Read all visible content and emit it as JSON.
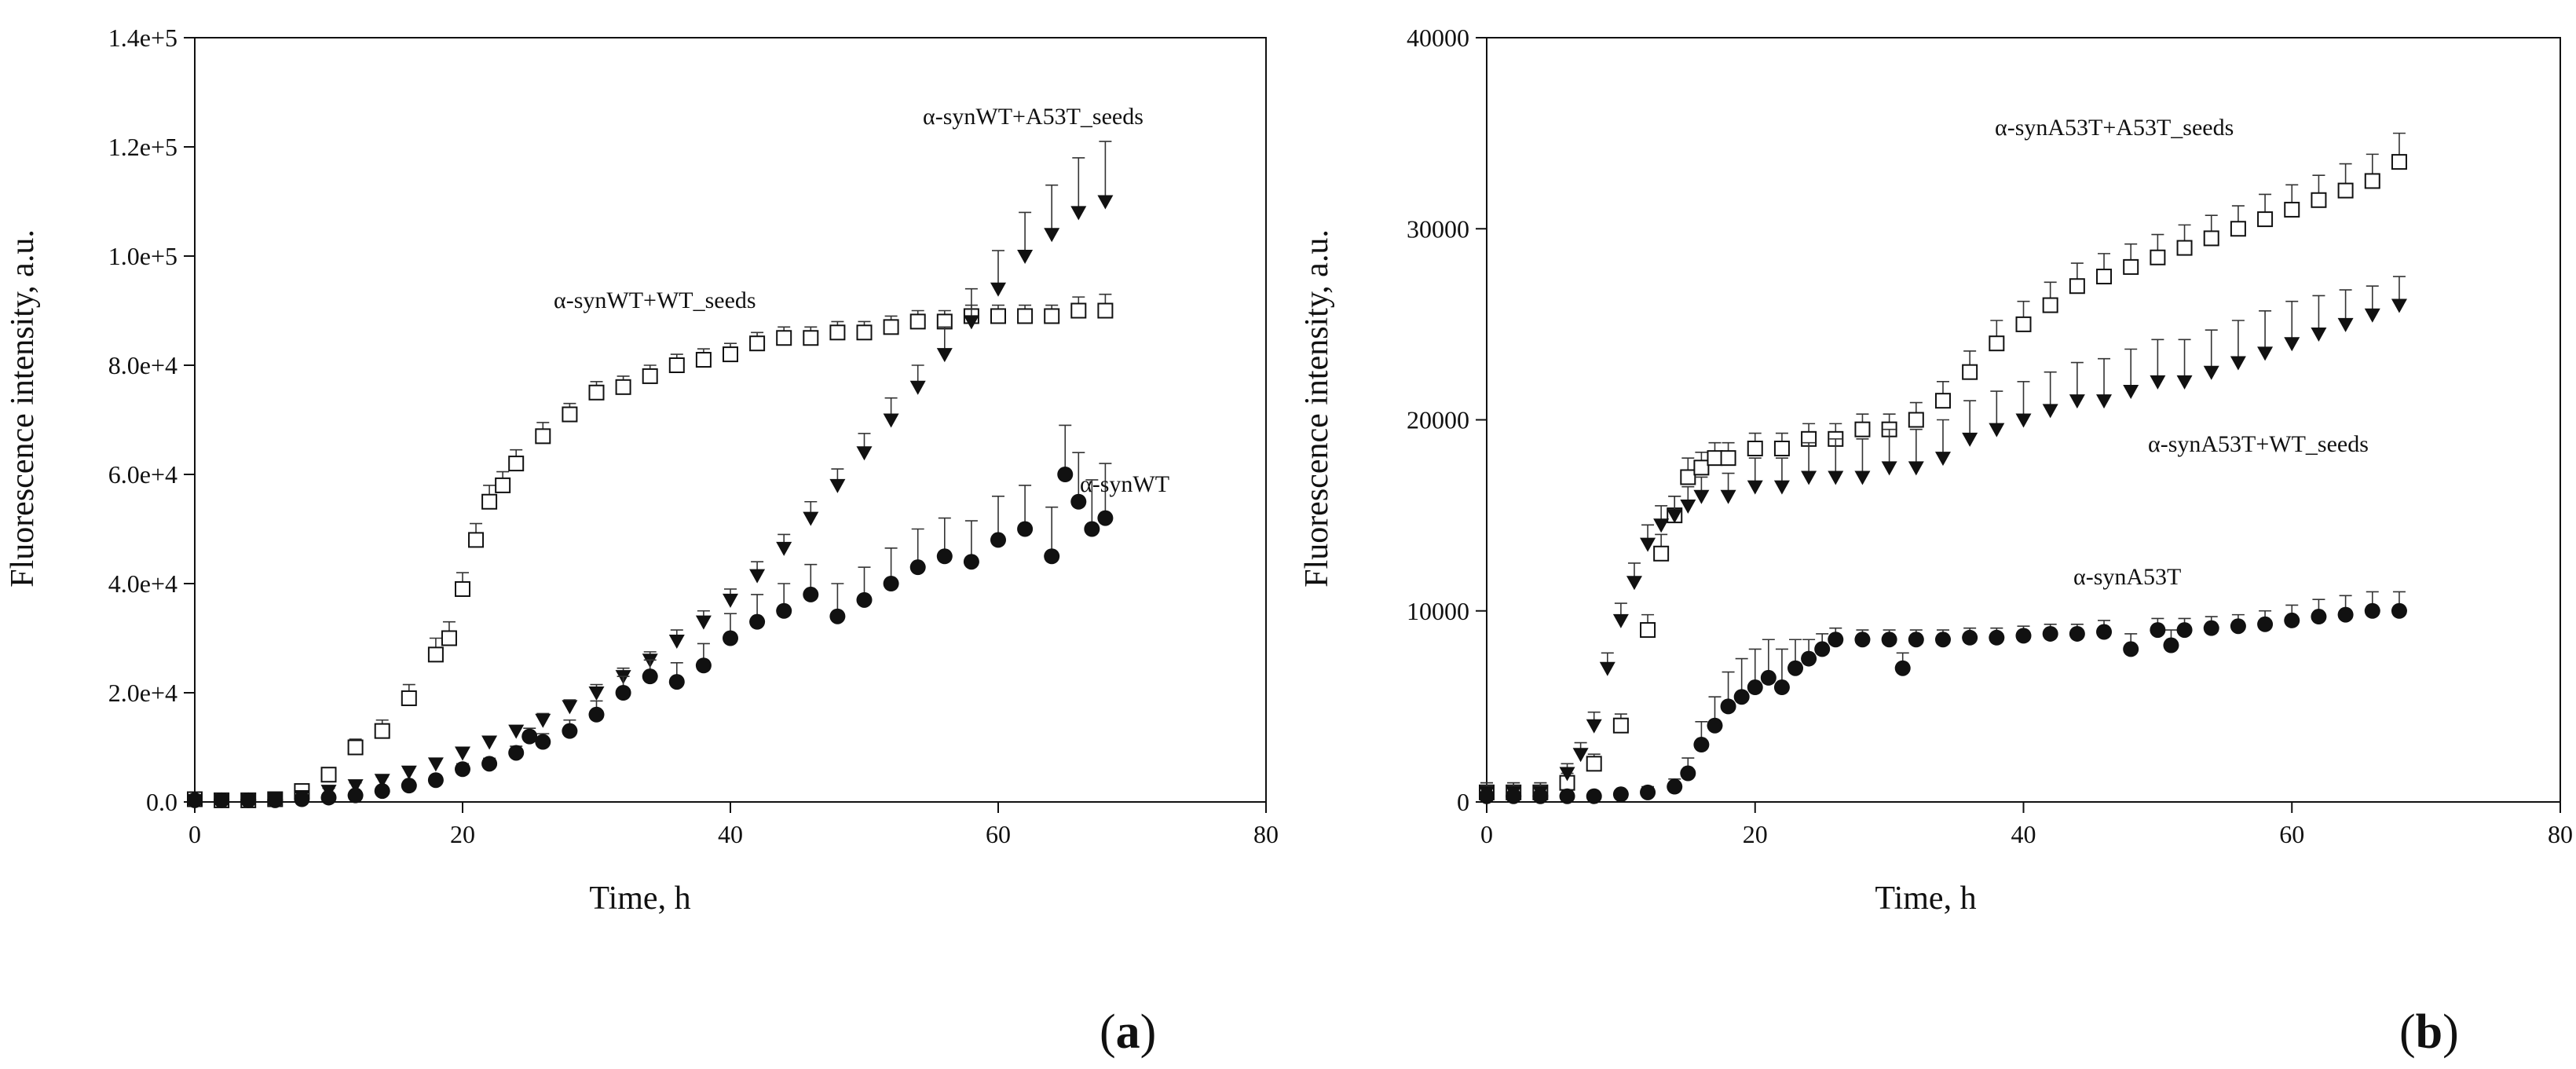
{
  "chart_data": [
    {
      "type": "scatter",
      "panel": "a",
      "xlabel": "Time, h",
      "ylabel": "Fluorescence intensity, a.u.",
      "xlim": [
        0,
        80
      ],
      "ylim": [
        0,
        140000
      ],
      "xticks": [
        "0",
        "20",
        "40",
        "60",
        "80"
      ],
      "yticks": [
        "0.0",
        "2.0e+4",
        "4.0e+4",
        "6.0e+4",
        "8.0e+4",
        "1.0e+5",
        "1.2e+5",
        "1.4e+5"
      ],
      "grid": false,
      "series": [
        {
          "name": "α-synWT+WT_seeds",
          "marker": "open-square",
          "x": [
            0,
            2,
            4,
            6,
            8,
            10,
            12,
            14,
            16,
            18,
            19,
            20,
            21,
            22,
            23,
            24,
            26,
            28,
            30,
            32,
            34,
            36,
            38,
            40,
            42,
            44,
            46,
            48,
            50,
            52,
            54,
            56,
            58,
            60,
            62,
            64,
            66,
            68
          ],
          "y": [
            500,
            300,
            300,
            500,
            2000,
            5000,
            10000,
            13000,
            19000,
            27000,
            30000,
            39000,
            48000,
            55000,
            58000,
            62000,
            67000,
            71000,
            75000,
            76000,
            78000,
            80000,
            81000,
            82000,
            84000,
            85000,
            85000,
            86000,
            86000,
            87000,
            88000,
            88000,
            89000,
            89000,
            89000,
            89000,
            90000,
            90000
          ],
          "err": [
            0,
            0,
            0,
            0,
            500,
            1000,
            1500,
            2000,
            2500,
            3000,
            3000,
            3000,
            3000,
            3000,
            2500,
            2500,
            2500,
            2000,
            2000,
            2000,
            2000,
            2000,
            2000,
            2000,
            2000,
            2000,
            2000,
            2000,
            2000,
            2000,
            2000,
            2000,
            2000,
            2000,
            2000,
            2000,
            2500,
            3000
          ]
        },
        {
          "name": "α-synWT+A53T_seeds",
          "marker": "filled-triangle-down",
          "x": [
            0,
            2,
            4,
            6,
            8,
            10,
            12,
            14,
            16,
            18,
            20,
            22,
            24,
            26,
            28,
            30,
            32,
            34,
            36,
            38,
            40,
            42,
            44,
            46,
            48,
            50,
            52,
            54,
            56,
            58,
            60,
            62,
            64,
            66,
            68
          ],
          "y": [
            300,
            300,
            300,
            500,
            1000,
            2000,
            3000,
            4000,
            5500,
            7000,
            9000,
            11000,
            13000,
            15000,
            17500,
            20000,
            23000,
            26000,
            29500,
            33000,
            37000,
            41500,
            46500,
            52000,
            58000,
            64000,
            70000,
            76000,
            82000,
            88000,
            94000,
            100000,
            104000,
            108000,
            110000
          ],
          "err": [
            0,
            0,
            0,
            0,
            300,
            500,
            500,
            600,
            700,
            800,
            1000,
            1000,
            1000,
            1200,
            1200,
            1500,
            1500,
            1500,
            2000,
            2000,
            2000,
            2500,
            2500,
            3000,
            3000,
            3500,
            4000,
            4000,
            5000,
            6000,
            7000,
            8000,
            9000,
            10000,
            11000
          ]
        },
        {
          "name": "α-synWT",
          "marker": "filled-circle",
          "x": [
            0,
            2,
            4,
            6,
            8,
            10,
            12,
            14,
            16,
            18,
            20,
            22,
            24,
            25,
            26,
            28,
            30,
            32,
            34,
            36,
            38,
            40,
            42,
            44,
            46,
            48,
            50,
            52,
            54,
            56,
            58,
            60,
            62,
            64,
            65,
            66,
            67,
            68
          ],
          "y": [
            300,
            300,
            300,
            300,
            500,
            800,
            1200,
            2000,
            3000,
            4000,
            6000,
            7000,
            9000,
            12000,
            11000,
            13000,
            16000,
            20000,
            23000,
            22000,
            25000,
            30000,
            33000,
            35000,
            38000,
            34000,
            37000,
            40000,
            43000,
            45000,
            44000,
            48000,
            50000,
            45000,
            60000,
            55000,
            50000,
            52000
          ],
          "err": [
            0,
            0,
            0,
            0,
            200,
            300,
            400,
            500,
            600,
            800,
            1000,
            1000,
            1200,
            1500,
            1500,
            2000,
            2500,
            3000,
            3000,
            3500,
            4000,
            4500,
            5000,
            5000,
            5500,
            6000,
            6000,
            6500,
            7000,
            7000,
            7500,
            8000,
            8000,
            9000,
            9000,
            9000,
            9000,
            10000
          ]
        }
      ],
      "annotations": [
        "α-synWT+A53T_seeds",
        "α-synWT+WT_seeds",
        "α-synWT"
      ],
      "caption": "(a)"
    },
    {
      "type": "scatter",
      "panel": "b",
      "xlabel": "Time, h",
      "ylabel": "Fluorescence intensity, a.u.",
      "xlim": [
        0,
        80
      ],
      "ylim": [
        0,
        40000
      ],
      "xticks": [
        "0",
        "20",
        "40",
        "60",
        "80"
      ],
      "yticks": [
        "0",
        "10000",
        "20000",
        "30000",
        "40000"
      ],
      "grid": false,
      "series": [
        {
          "name": "α-synA53T+A53T_seeds",
          "marker": "open-square",
          "x": [
            0,
            2,
            4,
            6,
            8,
            10,
            12,
            13,
            14,
            15,
            16,
            17,
            18,
            20,
            22,
            24,
            26,
            28,
            30,
            32,
            34,
            36,
            38,
            40,
            42,
            44,
            46,
            48,
            50,
            52,
            54,
            56,
            58,
            60,
            62,
            64,
            66,
            68
          ],
          "y": [
            500,
            500,
            500,
            1000,
            2000,
            4000,
            9000,
            13000,
            15000,
            17000,
            17500,
            18000,
            18000,
            18500,
            18500,
            19000,
            19000,
            19500,
            19500,
            20000,
            21000,
            22500,
            24000,
            25000,
            26000,
            27000,
            27500,
            28000,
            28500,
            29000,
            29500,
            30000,
            30500,
            31000,
            31500,
            32000,
            32500,
            33500
          ],
          "err": [
            500,
            500,
            500,
            500,
            500,
            600,
            800,
            1000,
            1000,
            1000,
            800,
            800,
            800,
            800,
            800,
            800,
            800,
            800,
            800,
            900,
            1000,
            1100,
            1200,
            1200,
            1200,
            1200,
            1200,
            1200,
            1200,
            1200,
            1200,
            1200,
            1300,
            1300,
            1300,
            1400,
            1400,
            1500
          ]
        },
        {
          "name": "α-synA53T+WT_seeds",
          "marker": "filled-triangle-down",
          "x": [
            0,
            2,
            4,
            6,
            7,
            8,
            9,
            10,
            11,
            12,
            13,
            14,
            15,
            16,
            18,
            20,
            22,
            24,
            26,
            28,
            30,
            32,
            34,
            36,
            38,
            40,
            42,
            44,
            46,
            48,
            50,
            52,
            54,
            56,
            58,
            60,
            62,
            64,
            66,
            68
          ],
          "y": [
            500,
            500,
            500,
            1500,
            2500,
            4000,
            7000,
            9500,
            11500,
            13500,
            14500,
            15000,
            15500,
            16000,
            16000,
            16500,
            16500,
            17000,
            17000,
            17000,
            17500,
            17500,
            18000,
            19000,
            19500,
            20000,
            20500,
            21000,
            21000,
            21500,
            22000,
            22000,
            22500,
            23000,
            23500,
            24000,
            24500,
            25000,
            25500,
            26000
          ],
          "err": [
            500,
            500,
            500,
            500,
            600,
            700,
            800,
            900,
            1000,
            1000,
            1000,
            1000,
            1000,
            1000,
            1200,
            1500,
            1500,
            1800,
            2000,
            2000,
            2000,
            2000,
            2000,
            2000,
            2000,
            2000,
            2000,
            2000,
            2200,
            2200,
            2200,
            2200,
            2200,
            2200,
            2200,
            2200,
            2000,
            1800,
            1500,
            1500
          ]
        },
        {
          "name": "α-synA53T",
          "marker": "filled-circle",
          "x": [
            0,
            2,
            4,
            6,
            8,
            10,
            12,
            14,
            15,
            16,
            17,
            18,
            19,
            20,
            21,
            22,
            23,
            24,
            25,
            26,
            28,
            30,
            31,
            32,
            34,
            36,
            38,
            40,
            42,
            44,
            46,
            48,
            50,
            51,
            52,
            54,
            56,
            58,
            60,
            62,
            64,
            66,
            68
          ],
          "y": [
            300,
            300,
            300,
            300,
            300,
            400,
            500,
            800,
            1500,
            3000,
            4000,
            5000,
            5500,
            6000,
            6500,
            6000,
            7000,
            7500,
            8000,
            8500,
            8500,
            8500,
            7000,
            8500,
            8500,
            8600,
            8600,
            8700,
            8800,
            8800,
            8900,
            8000,
            9000,
            8200,
            9000,
            9100,
            9200,
            9300,
            9500,
            9700,
            9800,
            10000,
            10000
          ],
          "err": [
            100,
            100,
            100,
            100,
            100,
            200,
            300,
            400,
            800,
            1200,
            1500,
            1800,
            2000,
            2000,
            2000,
            2000,
            1500,
            1000,
            800,
            600,
            500,
            500,
            800,
            500,
            500,
            500,
            500,
            500,
            500,
            500,
            600,
            800,
            600,
            800,
            600,
            600,
            600,
            700,
            800,
            900,
            1000,
            1000,
            1000
          ]
        }
      ],
      "annotations": [
        "α-synA53T+A53T_seeds",
        "α-synA53T+WT_seeds",
        "α-synA53T"
      ],
      "caption": "(b)"
    }
  ]
}
